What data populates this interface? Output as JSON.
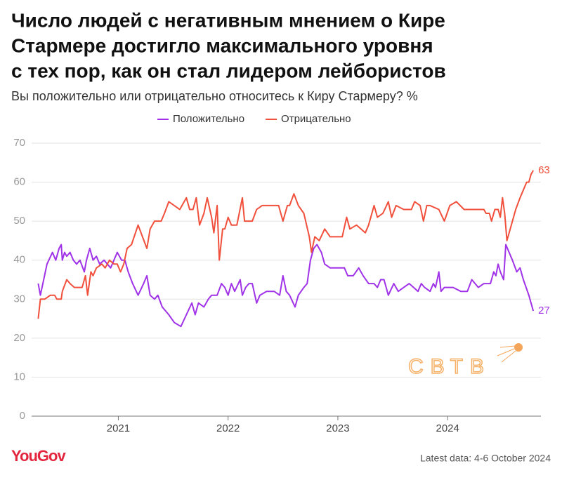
{
  "chart_data": {
    "type": "line",
    "title_lines": [
      "Число людей с негативным мнением о Кире",
      "Стармере достигло максимального уровня",
      "с тех пор, как он стал лидером лейбористов"
    ],
    "subtitle": "Вы положительно или отрицательно относитесь к Киру Стармеру? %",
    "xlim": [
      2020.21,
      2024.85
    ],
    "xticks": [
      2021,
      2022,
      2023,
      2024
    ],
    "ylim": [
      0,
      70
    ],
    "yticks": [
      0,
      10,
      20,
      30,
      40,
      50,
      60,
      70
    ],
    "grid": true,
    "legend": "top",
    "series": [
      {
        "name": "Положительно",
        "color": "#a033e8",
        "x": [
          2020.27,
          2020.29,
          2020.32,
          2020.35,
          2020.4,
          2020.43,
          2020.46,
          2020.48,
          2020.49,
          2020.51,
          2020.53,
          2020.56,
          2020.59,
          2020.62,
          2020.65,
          2020.69,
          2020.71,
          2020.74,
          2020.77,
          2020.8,
          2020.83,
          2020.87,
          2020.9,
          2020.93,
          2020.96,
          2020.99,
          2021.03,
          2021.06,
          2021.09,
          2021.13,
          2021.18,
          2021.23,
          2021.26,
          2021.29,
          2021.33,
          2021.36,
          2021.4,
          2021.46,
          2021.51,
          2021.57,
          2021.62,
          2021.67,
          2021.7,
          2021.73,
          2021.78,
          2021.82,
          2021.85,
          2021.9,
          2021.94,
          2021.97,
          2022.0,
          2022.03,
          2022.06,
          2022.11,
          2022.13,
          2022.16,
          2022.19,
          2022.22,
          2022.26,
          2022.29,
          2022.35,
          2022.42,
          2022.47,
          2022.5,
          2022.53,
          2022.56,
          2022.61,
          2022.64,
          2022.69,
          2022.72,
          2022.75,
          2022.78,
          2022.81,
          2022.85,
          2022.88,
          2022.93,
          2022.99,
          2023.06,
          2023.09,
          2023.14,
          2023.19,
          2023.23,
          2023.28,
          2023.33,
          2023.36,
          2023.39,
          2023.42,
          2023.46,
          2023.51,
          2023.55,
          2023.6,
          2023.65,
          2023.69,
          2023.73,
          2023.76,
          2023.79,
          2023.84,
          2023.87,
          2023.89,
          2023.92,
          2023.94,
          2023.97,
          2024.05,
          2024.12,
          2024.18,
          2024.22,
          2024.28,
          2024.33,
          2024.39,
          2024.42,
          2024.44,
          2024.46,
          2024.48,
          2024.51,
          2024.53,
          2024.56,
          2024.59,
          2024.63,
          2024.66,
          2024.69,
          2024.74,
          2024.78
        ],
        "values": [
          34,
          31,
          35,
          39,
          42,
          40,
          43,
          44,
          40,
          42,
          41,
          42,
          40,
          39,
          40,
          37,
          40,
          43,
          40,
          41,
          39,
          40,
          39,
          38,
          40,
          42,
          40,
          40,
          37,
          34,
          31,
          34,
          36,
          31,
          30,
          31,
          28,
          26,
          24,
          23,
          26,
          29,
          26,
          29,
          28,
          30,
          31,
          31,
          34,
          33,
          31,
          34,
          32,
          35,
          31,
          33,
          34,
          34,
          29,
          31,
          32,
          32,
          31,
          36,
          32,
          31,
          28,
          31,
          33,
          34,
          40,
          43,
          44,
          42,
          39,
          38,
          38,
          38,
          36,
          36,
          38,
          36,
          34,
          34,
          33,
          35,
          35,
          31,
          34,
          32,
          33,
          34,
          33,
          32,
          34,
          33,
          32,
          34,
          33,
          37,
          32,
          33,
          33,
          32,
          32,
          35,
          33,
          34,
          34,
          37,
          36,
          39,
          37,
          35,
          44,
          42,
          40,
          37,
          38,
          35,
          31,
          27
        ]
      },
      {
        "name": "Отрицательно",
        "color": "#f0503c",
        "x": [
          2020.27,
          2020.29,
          2020.33,
          2020.38,
          2020.42,
          2020.44,
          2020.48,
          2020.49,
          2020.53,
          2020.56,
          2020.6,
          2020.63,
          2020.67,
          2020.7,
          2020.72,
          2020.75,
          2020.77,
          2020.8,
          2020.85,
          2020.88,
          2020.92,
          2020.96,
          2020.99,
          2021.02,
          2021.05,
          2021.08,
          2021.12,
          2021.18,
          2021.22,
          2021.26,
          2021.29,
          2021.33,
          2021.39,
          2021.42,
          2021.46,
          2021.51,
          2021.56,
          2021.6,
          2021.62,
          2021.65,
          2021.68,
          2021.71,
          2021.74,
          2021.78,
          2021.81,
          2021.85,
          2021.87,
          2021.9,
          2021.92,
          2021.95,
          2021.97,
          2022.0,
          2022.03,
          2022.08,
          2022.13,
          2022.15,
          2022.17,
          2022.22,
          2022.26,
          2022.31,
          2022.38,
          2022.46,
          2022.5,
          2022.52,
          2022.54,
          2022.56,
          2022.6,
          2022.64,
          2022.69,
          2022.74,
          2022.76,
          2022.79,
          2022.83,
          2022.88,
          2022.93,
          2022.98,
          2023.04,
          2023.08,
          2023.11,
          2023.17,
          2023.21,
          2023.25,
          2023.28,
          2023.33,
          2023.36,
          2023.41,
          2023.46,
          2023.49,
          2023.53,
          2023.6,
          2023.67,
          2023.7,
          2023.75,
          2023.78,
          2023.81,
          2023.84,
          2023.92,
          2023.97,
          2024.02,
          2024.08,
          2024.15,
          2024.21,
          2024.28,
          2024.33,
          2024.35,
          2024.38,
          2024.4,
          2024.43,
          2024.46,
          2024.48,
          2024.5,
          2024.52,
          2024.54,
          2024.57,
          2024.62,
          2024.66,
          2024.69,
          2024.72,
          2024.74,
          2024.76,
          2024.78
        ],
        "values": [
          25,
          30,
          30,
          31,
          31,
          30,
          30,
          32,
          35,
          34,
          33,
          33,
          33,
          36,
          31,
          37,
          36,
          38,
          39,
          38,
          40,
          39,
          39,
          37,
          39,
          43,
          44,
          49,
          46,
          43,
          48,
          50,
          50,
          52,
          55,
          54,
          53,
          55,
          56,
          53,
          53,
          56,
          49,
          52,
          56,
          51,
          47,
          54,
          40,
          48,
          48,
          51,
          49,
          49,
          56,
          50,
          50,
          50,
          53,
          54,
          54,
          54,
          50,
          52,
          54,
          54,
          57,
          54,
          52,
          46,
          42,
          46,
          45,
          48,
          46,
          46,
          46,
          51,
          48,
          49,
          48,
          47,
          49,
          54,
          51,
          52,
          55,
          51,
          54,
          53,
          53,
          55,
          54,
          50,
          54,
          54,
          53,
          50,
          54,
          55,
          53,
          53,
          53,
          53,
          52,
          52,
          50,
          53,
          53,
          51,
          56,
          52,
          45,
          48,
          53,
          56,
          58,
          60,
          60,
          62,
          63
        ]
      }
    ]
  },
  "watermark": "СВТВ",
  "logo": "YouGov",
  "footnote": "Latest data: 4-6 October 2024"
}
